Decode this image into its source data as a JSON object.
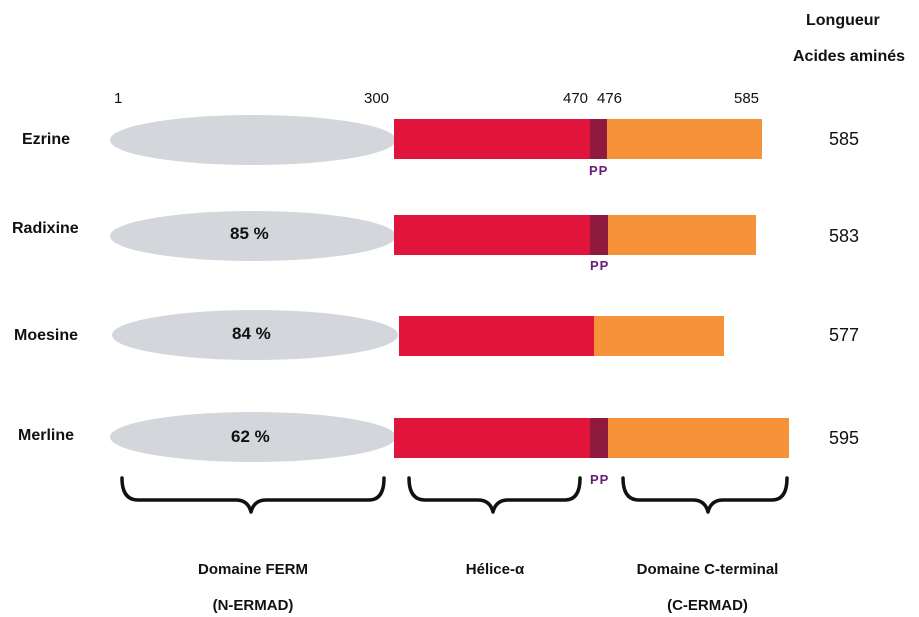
{
  "header": {
    "line1": "Longueur",
    "line2": "Acides aminés"
  },
  "positions": {
    "p1": "1",
    "p300": "300",
    "p470": "470",
    "p476": "476",
    "p585": "585"
  },
  "proteins": [
    {
      "name": "Ezrine",
      "identity": "",
      "length": "585",
      "pp": "PP"
    },
    {
      "name": "Radixine",
      "identity": "85 %",
      "length": "583",
      "pp": "PP"
    },
    {
      "name": "Moesine",
      "identity": "84 %",
      "length": "577",
      "pp": ""
    },
    {
      "name": "Merline",
      "identity": "62 %",
      "length": "595",
      "pp": "PP"
    }
  ],
  "domains": {
    "ferm_line1": "Domaine FERM",
    "ferm_line2": "(N-ERMAD)",
    "helix": "Hélice-α",
    "cterm_line1": "Domaine C-terminal",
    "cterm_line2": "(C-ERMAD)"
  },
  "colors": {
    "ferm": "#d3d6da",
    "helix": "#e1143c",
    "pp_region": "#8e1a3f",
    "cterm": "#f5923a",
    "pp_text": "#6a1b7a"
  }
}
